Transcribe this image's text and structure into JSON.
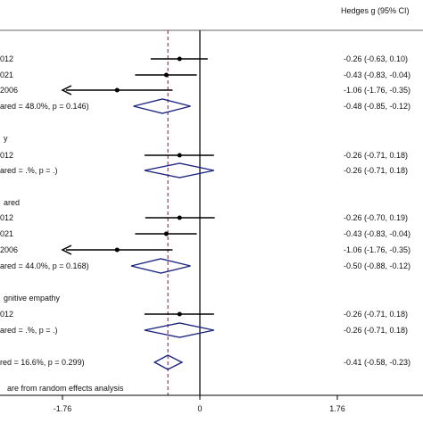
{
  "chart_data": {
    "type": "forest",
    "header": "Hedges g (95% CI)",
    "x_ticks": [
      {
        "value": -1.76,
        "label": "-1.76"
      },
      {
        "value": 0,
        "label": "0"
      },
      {
        "value": 1.76,
        "label": "1.76"
      }
    ],
    "xlim": [
      -1.76,
      1.76
    ],
    "null_line": 0,
    "overall_dashed_line": -0.41,
    "colors": {
      "diamond": "#1a237e",
      "dashed_line": "#7b1f4a",
      "axis": "#000000"
    },
    "rows": [
      {
        "kind": "study",
        "label": "012",
        "estimate": -0.26,
        "lower": -0.63,
        "upper": 0.1,
        "ci_text": "-0.26 (-0.63, 0.10)"
      },
      {
        "kind": "study",
        "label": "021",
        "estimate": -0.43,
        "lower": -0.83,
        "upper": -0.04,
        "ci_text": "-0.43 (-0.83, -0.04)"
      },
      {
        "kind": "study",
        "label": "2006",
        "estimate": -1.06,
        "lower": -1.76,
        "upper": -0.35,
        "ci_text": "-1.06 (-1.76, -0.35)",
        "arrow_left": true
      },
      {
        "kind": "subtotal",
        "label": "ared = 48.0%, p = 0.146)",
        "estimate": -0.48,
        "lower": -0.85,
        "upper": -0.12,
        "ci_text": "-0.48 (-0.85, -0.12)"
      },
      {
        "kind": "header",
        "label": "y"
      },
      {
        "kind": "study",
        "label": "012",
        "estimate": -0.26,
        "lower": -0.71,
        "upper": 0.18,
        "ci_text": "-0.26 (-0.71, 0.18)"
      },
      {
        "kind": "subtotal",
        "label": "ared = .%, p = .)",
        "estimate": -0.26,
        "lower": -0.71,
        "upper": 0.18,
        "ci_text": "-0.26 (-0.71, 0.18)"
      },
      {
        "kind": "header",
        "label": "ared"
      },
      {
        "kind": "study",
        "label": "012",
        "estimate": -0.26,
        "lower": -0.7,
        "upper": 0.19,
        "ci_text": "-0.26 (-0.70, 0.19)"
      },
      {
        "kind": "study",
        "label": "021",
        "estimate": -0.43,
        "lower": -0.83,
        "upper": -0.04,
        "ci_text": "-0.43 (-0.83, -0.04)"
      },
      {
        "kind": "study",
        "label": "2006",
        "estimate": -1.06,
        "lower": -1.76,
        "upper": -0.35,
        "ci_text": "-1.06 (-1.76, -0.35)",
        "arrow_left": true
      },
      {
        "kind": "subtotal",
        "label": "ared = 44.0%, p = 0.168)",
        "estimate": -0.5,
        "lower": -0.88,
        "upper": -0.12,
        "ci_text": "-0.50 (-0.88, -0.12)"
      },
      {
        "kind": "header",
        "label": "gnitive empathy"
      },
      {
        "kind": "study",
        "label": "012",
        "estimate": -0.26,
        "lower": -0.71,
        "upper": 0.18,
        "ci_text": "-0.26 (-0.71, 0.18)"
      },
      {
        "kind": "subtotal",
        "label": "ared = .%, p = .)",
        "estimate": -0.26,
        "lower": -0.71,
        "upper": 0.18,
        "ci_text": "-0.26 (-0.71, 0.18)"
      },
      {
        "kind": "overall",
        "label": "red = 16.6%, p = 0.299)",
        "estimate": -0.41,
        "lower": -0.58,
        "upper": -0.23,
        "ci_text": "-0.41 (-0.58, -0.23)"
      }
    ],
    "footnote": "are from random effects analysis"
  }
}
